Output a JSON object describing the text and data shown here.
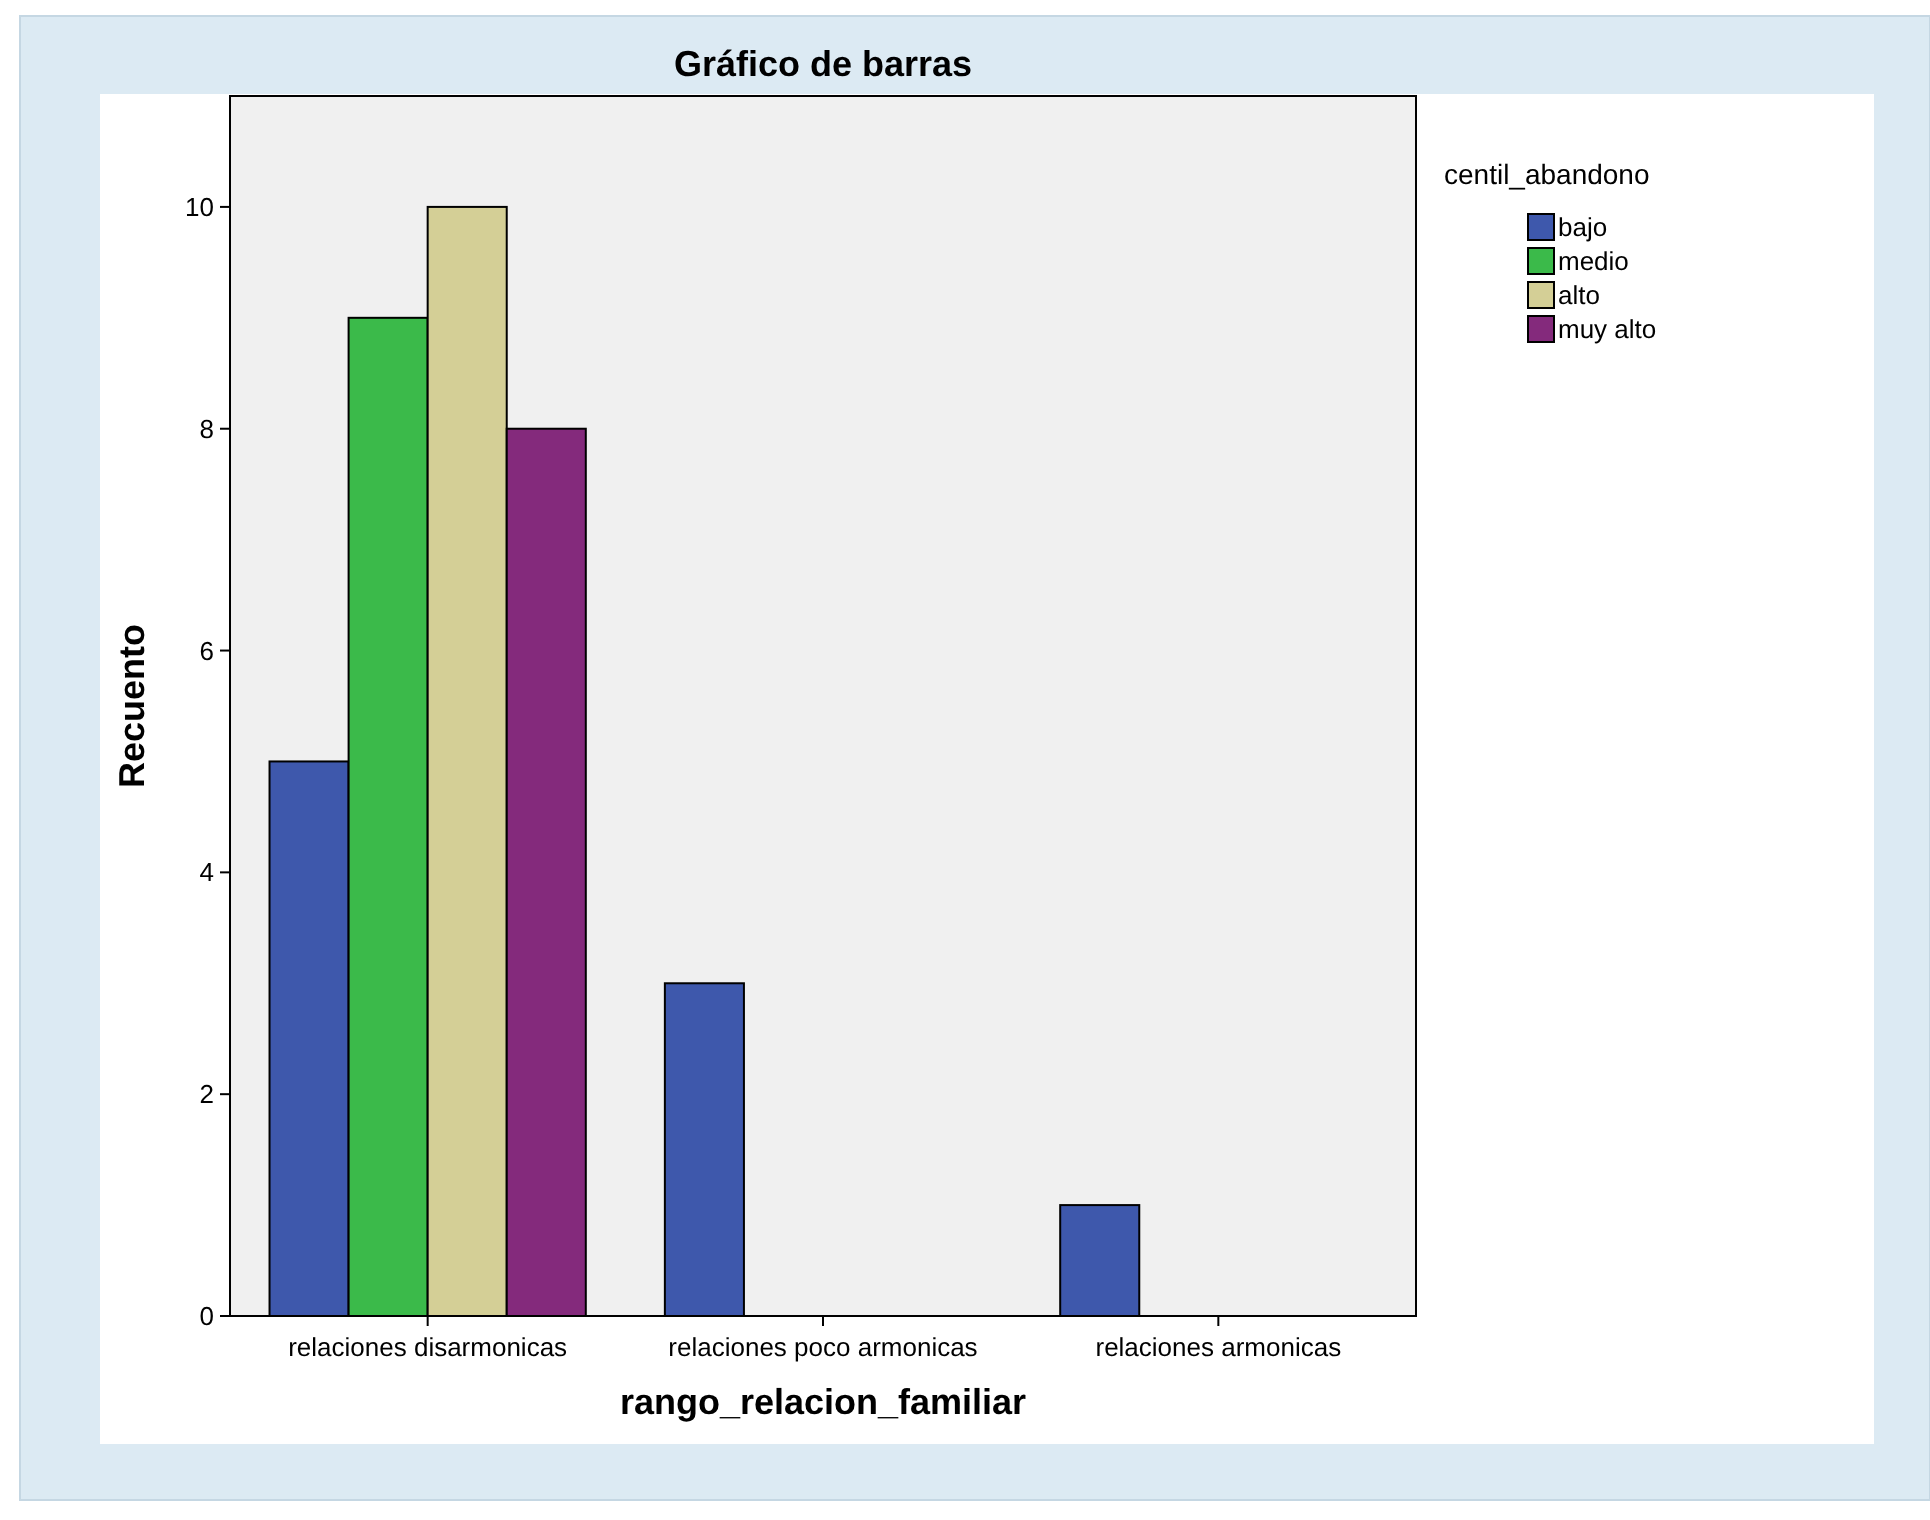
{
  "chart_data": {
    "type": "bar",
    "title": "Gráfico de barras",
    "xlabel": "rango_relacion_familiar",
    "ylabel": "Recuento",
    "legend_title": "centil_abandono",
    "categories": [
      "relaciones disarmonicas",
      "relaciones poco armonicas",
      "relaciones armonicas"
    ],
    "series": [
      {
        "name": "bajo",
        "color": "#3e58ac",
        "values": [
          5,
          3,
          1
        ]
      },
      {
        "name": "medio",
        "color": "#3bba4a",
        "values": [
          9,
          0,
          0
        ]
      },
      {
        "name": "alto",
        "color": "#d4cf96",
        "values": [
          10,
          0,
          0
        ]
      },
      {
        "name": "muy alto",
        "color": "#842a7c",
        "values": [
          8,
          0,
          0
        ]
      }
    ],
    "ylim": [
      0,
      11
    ],
    "yticks": [
      0,
      2,
      4,
      6,
      8,
      10
    ],
    "grid": false,
    "legend": "top right"
  }
}
